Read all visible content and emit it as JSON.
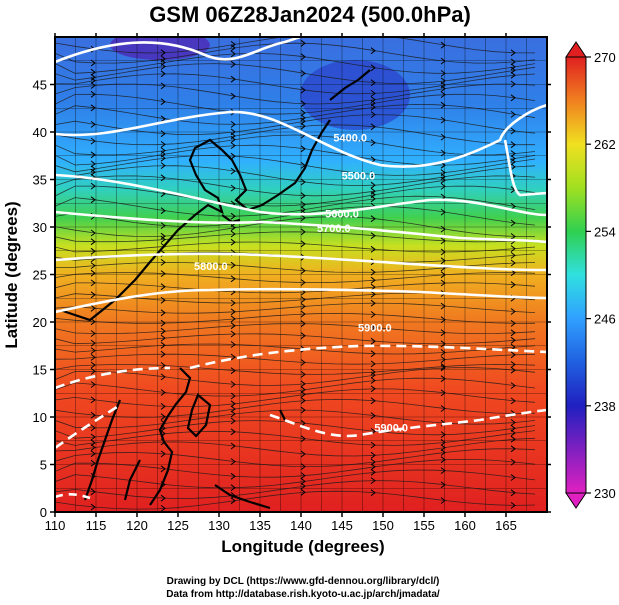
{
  "title": "GSM 06Z28Jan2024 (500.0hPa)",
  "x_axis": {
    "label": "Longitude (degrees)",
    "ticks": [
      110,
      115,
      120,
      125,
      130,
      135,
      140,
      145,
      150,
      155,
      160,
      165
    ],
    "range": [
      110,
      170
    ]
  },
  "y_axis": {
    "label": "Latitude  (degrees)",
    "ticks": [
      0,
      5,
      10,
      15,
      20,
      25,
      30,
      35,
      40,
      45
    ],
    "range": [
      0,
      50
    ]
  },
  "colorbar": {
    "ticks": [
      230,
      238,
      246,
      254,
      262,
      270
    ],
    "range": [
      230,
      270
    ],
    "colors": [
      "#e020c0",
      "#3020c0",
      "#2060e0",
      "#30a0ff",
      "#30e0e0",
      "#30d050",
      "#a0e020",
      "#f0e020",
      "#f0a020",
      "#f05020",
      "#e02020"
    ]
  },
  "contours": [
    {
      "label": "5400.0",
      "lon": 146,
      "lat": 39.0
    },
    {
      "label": "5500.0",
      "lon": 147,
      "lat": 35.0
    },
    {
      "label": "5600.0",
      "lon": 145,
      "lat": 31.0
    },
    {
      "label": "5700.0",
      "lon": 144,
      "lat": 29.5
    },
    {
      "label": "5800.0",
      "lon": 129,
      "lat": 25.5
    },
    {
      "label": "5900.0",
      "lon": 149,
      "lat": 19.0
    },
    {
      "label": "5900.0",
      "lon": 151,
      "lat": 8.5
    }
  ],
  "credits": {
    "line1": "Drawing by DCL (https://www.gfd-dennou.org/library/dcl/)",
    "line2": "Data from http://database.rish.kyoto-u.ac.jp/arch/jmadata/"
  }
}
